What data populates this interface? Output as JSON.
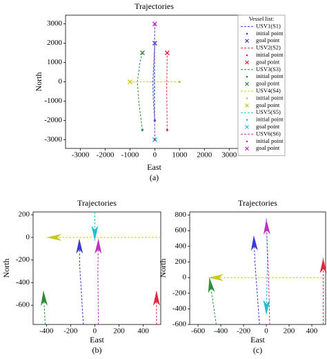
{
  "chart_data": [
    {
      "type": "line",
      "title": "Trajectories",
      "xlabel": "East",
      "ylabel": "North",
      "caption": "(a)",
      "xlim": [
        -3600,
        3550
      ],
      "ylim": [
        -3450,
        3450
      ],
      "xticks": [
        -3000,
        -2000,
        -1000,
        0,
        1000,
        2000,
        3000
      ],
      "yticks": [
        -3000,
        -2000,
        -1000,
        0,
        1000,
        2000,
        3000
      ],
      "legend_title": "Vessel list:",
      "marker_labels": [
        "initial point",
        "goal point"
      ],
      "series": [
        {
          "name": "USV1(S1)",
          "color": "#3a3ad0",
          "x": [
            0,
            -60,
            -80,
            -40,
            0
          ],
          "y": [
            -2000,
            -1000,
            0,
            1000,
            2000
          ],
          "initial": [
            0,
            -2000
          ],
          "goal": [
            0,
            2000
          ]
        },
        {
          "name": "USV2(S2)",
          "color": "#e0283a",
          "x": [
            500,
            480,
            490,
            500
          ],
          "y": [
            -2500,
            -500,
            500,
            1500
          ],
          "initial": [
            500,
            -2500
          ],
          "goal": [
            500,
            1500
          ]
        },
        {
          "name": "USV3(S3)",
          "color": "#2e8b3a",
          "x": [
            -500,
            -650,
            -700,
            -600,
            -500
          ],
          "y": [
            -2500,
            -1000,
            0,
            1000,
            1500
          ],
          "initial": [
            -500,
            -2500
          ],
          "goal": [
            -500,
            1500
          ]
        },
        {
          "name": "USV4(S4)",
          "color": "#c8c820",
          "x": [
            1000,
            -1000
          ],
          "y": [
            0,
            0
          ],
          "initial": [
            1000,
            0
          ],
          "goal": [
            -1000,
            0
          ]
        },
        {
          "name": "USV5(S5)",
          "color": "#20c0d0",
          "x": [
            0,
            0
          ],
          "y": [
            3000,
            -3000
          ],
          "initial": [
            0,
            3000
          ],
          "goal": [
            0,
            -3000
          ]
        },
        {
          "name": "USV6(S6)",
          "color": "#c030c0",
          "x": [
            0,
            -30,
            0
          ],
          "y": [
            -3000,
            0,
            3000
          ],
          "initial": [
            0,
            -3000
          ],
          "goal": [
            0,
            3000
          ]
        }
      ]
    },
    {
      "type": "line",
      "title": "Trajectories",
      "xlabel": "East",
      "ylabel": "North",
      "caption": "(b)",
      "arrows": true,
      "xlim": [
        -510,
        545
      ],
      "ylim": [
        -770,
        225
      ],
      "xticks": [
        -400,
        -200,
        0,
        200,
        400
      ],
      "yticks": [
        -600,
        -400,
        -200,
        0,
        200
      ],
      "series": [
        {
          "color": "#3a3ad0",
          "x": [
            -95,
            -110,
            -125,
            -128
          ],
          "y": [
            -770,
            -500,
            -250,
            -10
          ]
        },
        {
          "color": "#e0283a",
          "x": [
            510,
            510
          ],
          "y": [
            -770,
            -470
          ]
        },
        {
          "color": "#2e8b3a",
          "x": [
            -410,
            -425
          ],
          "y": [
            -770,
            -470
          ]
        },
        {
          "color": "#c8c820",
          "x": [
            545,
            -400
          ],
          "y": [
            0,
            0
          ]
        },
        {
          "color": "#20c0d0",
          "x": [
            0,
            0
          ],
          "y": [
            225,
            -30
          ]
        },
        {
          "color": "#c030c0",
          "x": [
            30,
            25,
            30
          ],
          "y": [
            -770,
            -300,
            -10
          ]
        }
      ]
    },
    {
      "type": "line",
      "title": "Trajectories",
      "xlabel": "East",
      "ylabel": "North",
      "caption": "(c)",
      "arrows": true,
      "xlim": [
        -673,
        521
      ],
      "ylim": [
        -600,
        840
      ],
      "xticks": [
        -600,
        -400,
        -200,
        0,
        200,
        400
      ],
      "yticks": [
        -600,
        -400,
        -200,
        0,
        200,
        400,
        600,
        800
      ],
      "series": [
        {
          "color": "#3a3ad0",
          "x": [
            -60,
            -80,
            -100,
            -110
          ],
          "y": [
            -600,
            -200,
            200,
            540
          ]
        },
        {
          "color": "#e0283a",
          "x": [
            500,
            500
          ],
          "y": [
            -600,
            250
          ]
        },
        {
          "color": "#2e8b3a",
          "x": [
            -440,
            -480,
            -500
          ],
          "y": [
            -600,
            -200,
            0
          ]
        },
        {
          "color": "#c8c820",
          "x": [
            521,
            -510
          ],
          "y": [
            0,
            0
          ]
        },
        {
          "color": "#20c0d0",
          "x": [
            0,
            10,
            0
          ],
          "y": [
            760,
            200,
            -480
          ]
        },
        {
          "color": "#c030c0",
          "x": [
            30,
            20,
            0
          ],
          "y": [
            -600,
            0,
            745
          ]
        }
      ]
    }
  ]
}
